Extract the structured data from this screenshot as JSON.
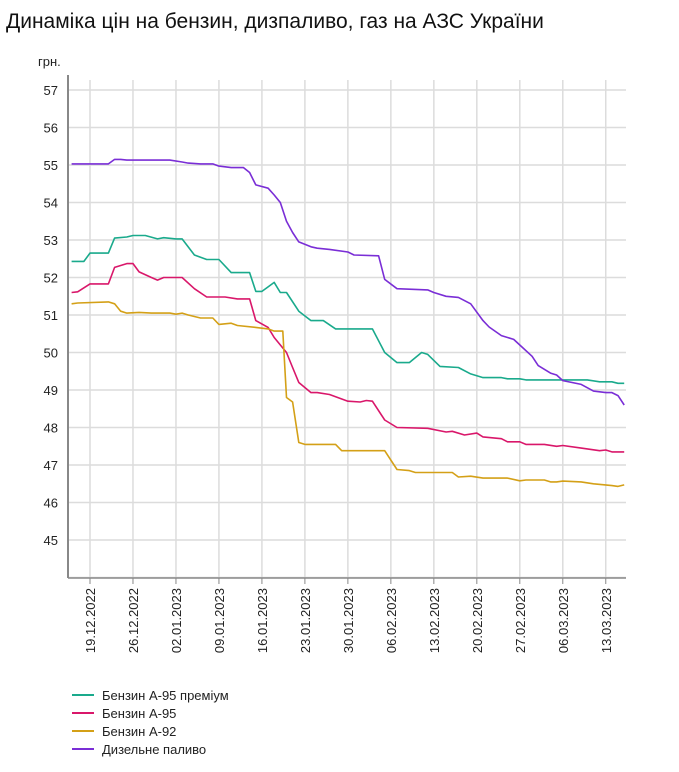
{
  "title": "Динаміка цін на бензин, дизпаливо, газ на АЗС України",
  "chart_data": {
    "type": "line",
    "title": "Динаміка цін на бензин, дизпаливо, газ на АЗС України",
    "ylabel": "грн.",
    "xlabel": "",
    "x_unit": "days since 15.12.2022",
    "xlim": [
      0,
      91.5
    ],
    "ylim": [
      44,
      57
    ],
    "yticks": [
      45,
      46,
      47,
      48,
      49,
      50,
      51,
      52,
      53,
      54,
      55,
      56,
      57
    ],
    "xticks": [
      {
        "day": 4,
        "label": "19.12.2022"
      },
      {
        "day": 11,
        "label": "26.12.2022"
      },
      {
        "day": 18,
        "label": "02.01.2023"
      },
      {
        "day": 25,
        "label": "09.01.2023"
      },
      {
        "day": 32,
        "label": "16.01.2023"
      },
      {
        "day": 39,
        "label": "23.01.2023"
      },
      {
        "day": 46,
        "label": "30.01.2023"
      },
      {
        "day": 53,
        "label": "06.02.2023"
      },
      {
        "day": 60,
        "label": "13.02.2023"
      },
      {
        "day": 67,
        "label": "20.02.2023"
      },
      {
        "day": 74,
        "label": "27.02.2023"
      },
      {
        "day": 81,
        "label": "06.03.2023"
      },
      {
        "day": 88,
        "label": "13.03.2023"
      }
    ],
    "grid": true,
    "legend_position": "bottom-left",
    "series": [
      {
        "name": "Бензин А-95 преміум",
        "color": "#1aaa8c",
        "points": [
          [
            1,
            52.43
          ],
          [
            3,
            52.43
          ],
          [
            4,
            52.65
          ],
          [
            7,
            52.65
          ],
          [
            8,
            53.05
          ],
          [
            10,
            53.08
          ],
          [
            11,
            53.12
          ],
          [
            13,
            53.12
          ],
          [
            15,
            53.03
          ],
          [
            16,
            53.06
          ],
          [
            18,
            53.03
          ],
          [
            19,
            53.03
          ],
          [
            21,
            52.6
          ],
          [
            23,
            52.48
          ],
          [
            25,
            52.48
          ],
          [
            27,
            52.13
          ],
          [
            30,
            52.13
          ],
          [
            31,
            51.63
          ],
          [
            32,
            51.63
          ],
          [
            33,
            51.75
          ],
          [
            34,
            51.87
          ],
          [
            35,
            51.6
          ],
          [
            36,
            51.6
          ],
          [
            38,
            51.1
          ],
          [
            40,
            50.85
          ],
          [
            42,
            50.85
          ],
          [
            44,
            50.63
          ],
          [
            50,
            50.63
          ],
          [
            52,
            50.0
          ],
          [
            54,
            49.73
          ],
          [
            56,
            49.73
          ],
          [
            58,
            50.0
          ],
          [
            59,
            49.95
          ],
          [
            61,
            49.63
          ],
          [
            64,
            49.6
          ],
          [
            66,
            49.43
          ],
          [
            68,
            49.33
          ],
          [
            71,
            49.33
          ],
          [
            72,
            49.3
          ],
          [
            74,
            49.3
          ],
          [
            75,
            49.27
          ],
          [
            85,
            49.27
          ],
          [
            87,
            49.22
          ],
          [
            89,
            49.22
          ],
          [
            90,
            49.18
          ],
          [
            91,
            49.18
          ]
        ]
      },
      {
        "name": "Бензин А-95",
        "color": "#d9176a",
        "points": [
          [
            1,
            51.6
          ],
          [
            2,
            51.62
          ],
          [
            4,
            51.83
          ],
          [
            7,
            51.83
          ],
          [
            8,
            52.27
          ],
          [
            10,
            52.37
          ],
          [
            11,
            52.37
          ],
          [
            12,
            52.15
          ],
          [
            14,
            52.0
          ],
          [
            15,
            51.93
          ],
          [
            16,
            52.0
          ],
          [
            19,
            52.0
          ],
          [
            21,
            51.7
          ],
          [
            23,
            51.48
          ],
          [
            26,
            51.48
          ],
          [
            28,
            51.43
          ],
          [
            30,
            51.43
          ],
          [
            31,
            50.85
          ],
          [
            33,
            50.67
          ],
          [
            34,
            50.4
          ],
          [
            36,
            50.0
          ],
          [
            37,
            49.6
          ],
          [
            38,
            49.2
          ],
          [
            40,
            48.93
          ],
          [
            41,
            48.93
          ],
          [
            43,
            48.88
          ],
          [
            46,
            48.7
          ],
          [
            48,
            48.68
          ],
          [
            49,
            48.72
          ],
          [
            50,
            48.7
          ],
          [
            52,
            48.2
          ],
          [
            54,
            48.0
          ],
          [
            59,
            47.98
          ],
          [
            62,
            47.88
          ],
          [
            63,
            47.9
          ],
          [
            65,
            47.8
          ],
          [
            67,
            47.85
          ],
          [
            68,
            47.75
          ],
          [
            71,
            47.7
          ],
          [
            72,
            47.62
          ],
          [
            74,
            47.62
          ],
          [
            75,
            47.55
          ],
          [
            78,
            47.55
          ],
          [
            80,
            47.5
          ],
          [
            81,
            47.52
          ],
          [
            84,
            47.45
          ],
          [
            87,
            47.38
          ],
          [
            88,
            47.4
          ],
          [
            89,
            47.35
          ],
          [
            91,
            47.35
          ]
        ]
      },
      {
        "name": "Бензин А-92",
        "color": "#d4a017",
        "points": [
          [
            1,
            51.3
          ],
          [
            2,
            51.32
          ],
          [
            7,
            51.35
          ],
          [
            8,
            51.3
          ],
          [
            9,
            51.1
          ],
          [
            10,
            51.05
          ],
          [
            12,
            51.07
          ],
          [
            14,
            51.05
          ],
          [
            17,
            51.05
          ],
          [
            18,
            51.02
          ],
          [
            19,
            51.05
          ],
          [
            20,
            51.0
          ],
          [
            22,
            50.92
          ],
          [
            24,
            50.92
          ],
          [
            25,
            50.75
          ],
          [
            27,
            50.78
          ],
          [
            28,
            50.72
          ],
          [
            31,
            50.67
          ],
          [
            33,
            50.63
          ],
          [
            34,
            50.57
          ],
          [
            35.4,
            50.57
          ],
          [
            36,
            48.8
          ],
          [
            37,
            48.68
          ],
          [
            38,
            47.6
          ],
          [
            39,
            47.55
          ],
          [
            44,
            47.55
          ],
          [
            45,
            47.38
          ],
          [
            52,
            47.38
          ],
          [
            54,
            46.88
          ],
          [
            56,
            46.85
          ],
          [
            57,
            46.8
          ],
          [
            63,
            46.8
          ],
          [
            64,
            46.68
          ],
          [
            66,
            46.7
          ],
          [
            68,
            46.65
          ],
          [
            72,
            46.65
          ],
          [
            74,
            46.58
          ],
          [
            75,
            46.6
          ],
          [
            78,
            46.6
          ],
          [
            79,
            46.55
          ],
          [
            80,
            46.55
          ],
          [
            81,
            46.57
          ],
          [
            84,
            46.55
          ],
          [
            86,
            46.5
          ],
          [
            89,
            46.45
          ],
          [
            90,
            46.43
          ],
          [
            91,
            46.47
          ]
        ]
      },
      {
        "name": "Дизельне паливо",
        "color": "#7a2ed6",
        "points": [
          [
            1,
            55.03
          ],
          [
            7,
            55.03
          ],
          [
            8,
            55.15
          ],
          [
            9,
            55.15
          ],
          [
            10,
            55.13
          ],
          [
            17,
            55.13
          ],
          [
            19,
            55.08
          ],
          [
            20,
            55.05
          ],
          [
            22,
            55.03
          ],
          [
            24,
            55.03
          ],
          [
            25,
            54.97
          ],
          [
            27,
            54.93
          ],
          [
            29,
            54.93
          ],
          [
            30,
            54.8
          ],
          [
            31,
            54.47
          ],
          [
            33,
            54.38
          ],
          [
            34,
            54.2
          ],
          [
            35,
            54.0
          ],
          [
            36,
            53.5
          ],
          [
            37,
            53.2
          ],
          [
            38,
            52.95
          ],
          [
            40,
            52.82
          ],
          [
            41,
            52.78
          ],
          [
            43,
            52.75
          ],
          [
            46,
            52.68
          ],
          [
            47,
            52.6
          ],
          [
            51,
            52.58
          ],
          [
            52,
            51.95
          ],
          [
            54,
            51.7
          ],
          [
            59,
            51.67
          ],
          [
            60,
            51.6
          ],
          [
            62,
            51.5
          ],
          [
            64,
            51.47
          ],
          [
            66,
            51.3
          ],
          [
            68,
            50.85
          ],
          [
            69,
            50.68
          ],
          [
            71,
            50.45
          ],
          [
            73,
            50.35
          ],
          [
            74,
            50.2
          ],
          [
            76,
            49.9
          ],
          [
            77,
            49.65
          ],
          [
            79,
            49.45
          ],
          [
            80,
            49.4
          ],
          [
            81,
            49.25
          ],
          [
            84,
            49.15
          ],
          [
            86,
            48.97
          ],
          [
            88,
            48.93
          ],
          [
            89,
            48.93
          ],
          [
            90,
            48.85
          ],
          [
            91,
            48.6
          ]
        ]
      }
    ]
  }
}
